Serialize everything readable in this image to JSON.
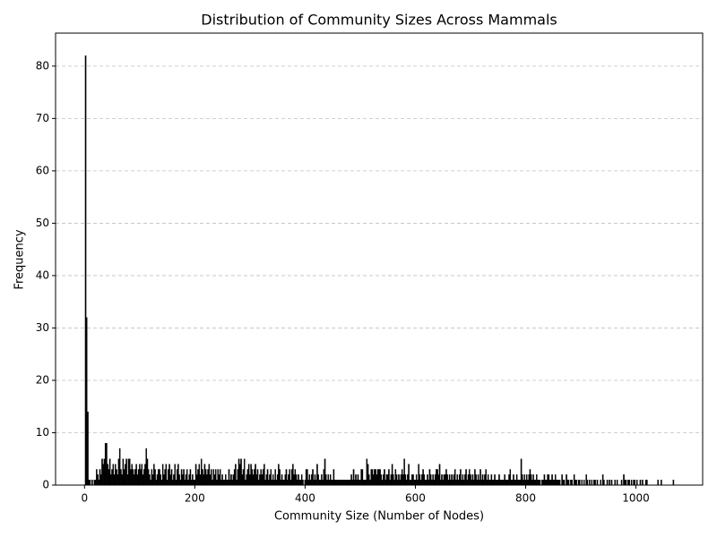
{
  "chart_data": {
    "type": "histogram",
    "title": "Distribution of Community Sizes Across Mammals",
    "xlabel": "Community Size (Number of Nodes)",
    "ylabel": "Frequency",
    "color": "#000000",
    "grid": true,
    "xlim": [
      -52.5,
      1121
    ],
    "ylim": [
      0,
      86.3
    ],
    "xticks": [
      0,
      200,
      400,
      600,
      800,
      1000
    ],
    "yticks": [
      0,
      10,
      20,
      30,
      40,
      50,
      60,
      70,
      80
    ],
    "bins": [
      1,
      3,
      5,
      7,
      9,
      11,
      13,
      15,
      17,
      19,
      21,
      23,
      25,
      27,
      29,
      31,
      33,
      35,
      37,
      39,
      41,
      43,
      45,
      47,
      49,
      51,
      53,
      55,
      57,
      59,
      61,
      63,
      65,
      67,
      69,
      71,
      73,
      75,
      77,
      79,
      81,
      83,
      85,
      87,
      89,
      91,
      93,
      95,
      97,
      99,
      101,
      103,
      105,
      107,
      109,
      111,
      113,
      115,
      117,
      119,
      121,
      123,
      125,
      127,
      129,
      131,
      133,
      135,
      137,
      139,
      141,
      143,
      145,
      147,
      149,
      151,
      153,
      155,
      157,
      159,
      161,
      163,
      165,
      167,
      169,
      171,
      173,
      175,
      177,
      179,
      181,
      183,
      185,
      187,
      189,
      191,
      193,
      195,
      197,
      199,
      201,
      203,
      205,
      207,
      209,
      211,
      213,
      215,
      217,
      219,
      221,
      223,
      225,
      227,
      229,
      231,
      233,
      235,
      237,
      239,
      241,
      243,
      245,
      247,
      249,
      251,
      253,
      255,
      257,
      259,
      261,
      263,
      265,
      267,
      269,
      271,
      273,
      275,
      277,
      279,
      281,
      283,
      285,
      287,
      289,
      291,
      293,
      295,
      297,
      299,
      301,
      303,
      305,
      307,
      309,
      311,
      313,
      315,
      317,
      319,
      321,
      323,
      325,
      327,
      329,
      331,
      333,
      335,
      337,
      339,
      341,
      343,
      345,
      347,
      349,
      351,
      353,
      355,
      357,
      359,
      361,
      363,
      365,
      367,
      369,
      371,
      373,
      375,
      377,
      379,
      381,
      383,
      385,
      387,
      389,
      391,
      393,
      395,
      397,
      399,
      401,
      403,
      405,
      407,
      409,
      411,
      413,
      415,
      417,
      419,
      421,
      423,
      425,
      427,
      429,
      431,
      433,
      435,
      437,
      439,
      441,
      443,
      445,
      447,
      449,
      451,
      453,
      455,
      457,
      459,
      461,
      463,
      465,
      467,
      469,
      471,
      473,
      475,
      477,
      479,
      481,
      483,
      485,
      487,
      489,
      491,
      493,
      495,
      497,
      499,
      501,
      503,
      505,
      507,
      509,
      511,
      513,
      515,
      517,
      519,
      521,
      523,
      525,
      527,
      529,
      531,
      533,
      535,
      537,
      539,
      541,
      543,
      545,
      547,
      549,
      551,
      553,
      555,
      557,
      559,
      561,
      563,
      565,
      567,
      569,
      571,
      573,
      575,
      577,
      579,
      581,
      583,
      585,
      587,
      589,
      591,
      593,
      595,
      597,
      599,
      601,
      603,
      605,
      607,
      609,
      611,
      613,
      615,
      617,
      619,
      621,
      623,
      625,
      627,
      629,
      631,
      633,
      635,
      637,
      639,
      641,
      643,
      645,
      647,
      649,
      651,
      653,
      655,
      657,
      659,
      661,
      663,
      665,
      667,
      669,
      671,
      673,
      675,
      677,
      679,
      681,
      683,
      685,
      687,
      689,
      691,
      693,
      695,
      697,
      699,
      701,
      703,
      705,
      707,
      709,
      711,
      713,
      715,
      717,
      719,
      721,
      723,
      725,
      727,
      729,
      731,
      733,
      735,
      737,
      739,
      741,
      743,
      745,
      747,
      749,
      751,
      753,
      755,
      757,
      759,
      761,
      763,
      765,
      767,
      769,
      771,
      773,
      775,
      777,
      779,
      781,
      783,
      785,
      787,
      789,
      791,
      793,
      795,
      797,
      799,
      801,
      803,
      805,
      807,
      809,
      811,
      813,
      815,
      817,
      819,
      821,
      823,
      825,
      827,
      829,
      831,
      833,
      835,
      837,
      839,
      841,
      843,
      845,
      847,
      849,
      851,
      853,
      855,
      857,
      859,
      861,
      863,
      865,
      867,
      869,
      871,
      873,
      875,
      877,
      879,
      881,
      883,
      885,
      887,
      889,
      891,
      893,
      895,
      897,
      899,
      901,
      903,
      905,
      907,
      909,
      911,
      913,
      915,
      917,
      919,
      921,
      923,
      925,
      927,
      929,
      931,
      933,
      935,
      937,
      939,
      941,
      943,
      945,
      947,
      949,
      951,
      953,
      955,
      957,
      959,
      961,
      963,
      965,
      967,
      969,
      971,
      973,
      975,
      977,
      979,
      981,
      983,
      985,
      987,
      989,
      991,
      993,
      995,
      997,
      999,
      1001,
      1003,
      1005,
      1007,
      1009,
      1011,
      1013,
      1015,
      1017,
      1019,
      1021,
      1023,
      1025,
      1027,
      1029,
      1031,
      1033,
      1035,
      1037,
      1039,
      1041,
      1043,
      1045,
      1047,
      1049,
      1051,
      1053,
      1055,
      1057,
      1059,
      1061,
      1063,
      1065,
      1067,
      1069,
      1071
    ],
    "values": [
      82,
      32,
      14,
      1,
      1,
      0,
      1,
      0,
      1,
      1,
      3,
      2,
      1,
      3,
      2,
      5,
      4,
      5,
      8,
      8,
      4,
      3,
      5,
      2,
      3,
      4,
      2,
      4,
      3,
      2,
      5,
      7,
      3,
      2,
      5,
      3,
      4,
      5,
      2,
      5,
      5,
      3,
      4,
      3,
      2,
      3,
      4,
      2,
      3,
      4,
      3,
      4,
      2,
      3,
      4,
      7,
      5,
      3,
      2,
      1,
      3,
      2,
      4,
      3,
      1,
      2,
      3,
      3,
      2,
      1,
      4,
      2,
      3,
      4,
      1,
      3,
      4,
      2,
      3,
      1,
      2,
      4,
      1,
      3,
      4,
      2,
      1,
      3,
      2,
      3,
      1,
      2,
      3,
      1,
      2,
      3,
      1,
      2,
      1,
      1,
      4,
      2,
      3,
      4,
      2,
      5,
      3,
      2,
      4,
      3,
      2,
      3,
      4,
      2,
      3,
      1,
      3,
      2,
      3,
      1,
      3,
      2,
      3,
      1,
      2,
      1,
      1,
      2,
      1,
      1,
      3,
      1,
      2,
      1,
      2,
      3,
      4,
      1,
      3,
      5,
      4,
      5,
      2,
      3,
      5,
      1,
      2,
      3,
      4,
      2,
      4,
      3,
      2,
      3,
      4,
      2,
      3,
      1,
      2,
      3,
      2,
      3,
      4,
      1,
      2,
      3,
      1,
      2,
      3,
      1,
      2,
      1,
      3,
      1,
      2,
      4,
      3,
      1,
      2,
      1,
      1,
      2,
      3,
      1,
      2,
      3,
      1,
      3,
      4,
      2,
      3,
      2,
      1,
      2,
      1,
      1,
      2,
      1,
      0,
      1,
      3,
      3,
      1,
      2,
      1,
      2,
      3,
      1,
      2,
      1,
      4,
      2,
      1,
      1,
      2,
      1,
      3,
      5,
      2,
      1,
      2,
      1,
      2,
      1,
      1,
      3,
      1,
      1,
      1,
      1,
      1,
      1,
      1,
      1,
      1,
      1,
      1,
      1,
      1,
      1,
      1,
      2,
      1,
      3,
      1,
      2,
      1,
      2,
      1,
      1,
      3,
      3,
      1,
      1,
      1,
      5,
      4,
      2,
      1,
      3,
      3,
      2,
      3,
      3,
      2,
      3,
      3,
      3,
      2,
      1,
      2,
      3,
      1,
      2,
      2,
      3,
      1,
      2,
      4,
      2,
      1,
      3,
      2,
      1,
      2,
      1,
      2,
      3,
      2,
      5,
      2,
      1,
      2,
      4,
      1,
      1,
      2,
      2,
      1,
      1,
      2,
      1,
      4,
      2,
      1,
      2,
      3,
      2,
      1,
      1,
      2,
      1,
      3,
      2,
      1,
      2,
      1,
      2,
      3,
      3,
      2,
      4,
      1,
      2,
      1,
      2,
      2,
      3,
      2,
      1,
      2,
      1,
      2,
      1,
      2,
      3,
      1,
      2,
      1,
      2,
      3,
      1,
      2,
      1,
      2,
      3,
      1,
      2,
      3,
      2,
      1,
      2,
      1,
      3,
      2,
      1,
      2,
      1,
      3,
      1,
      2,
      1,
      2,
      3,
      1,
      2,
      1,
      1,
      2,
      1,
      1,
      2,
      1,
      1,
      1,
      2,
      1,
      1,
      1,
      1,
      2,
      1,
      1,
      1,
      2,
      3,
      1,
      1,
      2,
      1,
      1,
      2,
      1,
      1,
      1,
      5,
      2,
      1,
      2,
      1,
      2,
      1,
      2,
      3,
      2,
      1,
      2,
      1,
      1,
      2,
      1,
      1,
      1,
      0,
      1,
      1,
      2,
      1,
      1,
      2,
      2,
      1,
      1,
      2,
      1,
      1,
      2,
      1,
      1,
      1,
      1,
      0,
      2,
      1,
      1,
      0,
      2,
      1,
      1,
      0,
      1,
      1,
      0,
      2,
      1,
      1,
      0,
      1,
      1,
      0,
      1,
      0,
      1,
      0,
      2,
      1,
      0,
      1,
      0,
      1,
      0,
      1,
      1,
      0,
      1,
      0,
      0,
      1,
      0,
      2,
      1,
      0,
      0,
      1,
      0,
      1,
      0,
      1,
      0,
      0,
      1,
      0,
      1,
      0,
      0,
      0,
      1,
      0,
      2,
      1,
      1,
      0,
      1,
      1,
      0,
      1,
      0,
      1,
      1,
      0,
      1,
      0,
      0,
      1,
      0,
      1,
      0,
      0,
      1,
      1,
      0,
      0,
      0,
      0,
      0,
      0,
      0,
      0,
      0,
      1,
      0,
      0,
      1,
      0,
      0,
      0,
      0,
      0,
      0,
      0,
      0,
      0,
      0,
      1,
      0
    ]
  }
}
